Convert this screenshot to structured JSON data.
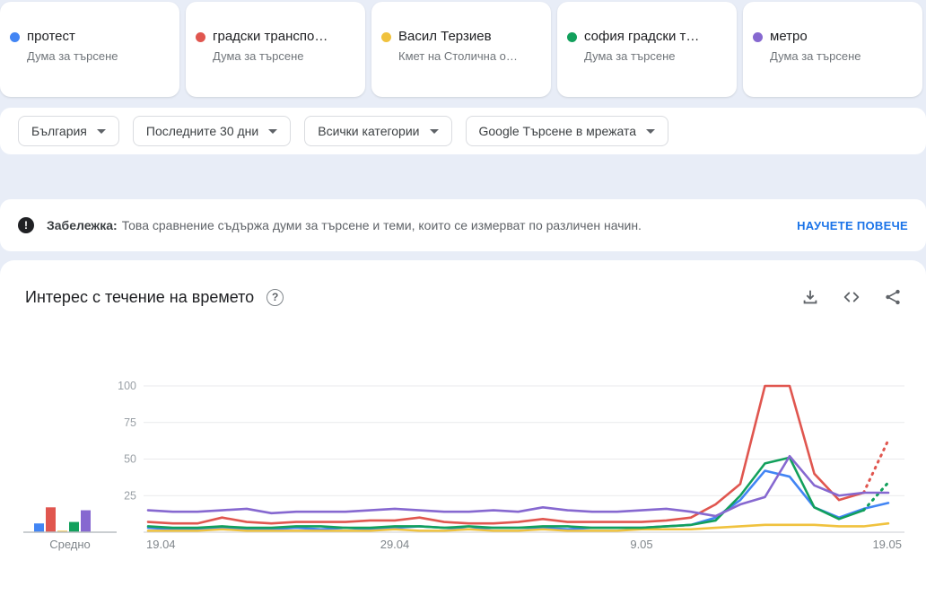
{
  "cards": [
    {
      "term": "протест",
      "subtitle": "Дума за търсене",
      "color": "#4285f4"
    },
    {
      "term": "градски транспо…",
      "subtitle": "Дума за търсене",
      "color": "#e0564f"
    },
    {
      "term": "Васил Терзиев",
      "subtitle": "Кмет на Столична о…",
      "color": "#f0c23e"
    },
    {
      "term": "софия градски т…",
      "subtitle": "Дума за търсене",
      "color": "#12a05c"
    },
    {
      "term": "метро",
      "subtitle": "Дума за търсене",
      "color": "#8668d0"
    }
  ],
  "filters": {
    "region": "България",
    "time": "Последните 30 дни",
    "category": "Всички категории",
    "search_type": "Google Търсене в мрежата"
  },
  "notice": {
    "label": "Забележка:",
    "text": "Това сравнение съдържа думи за търсене и теми, които се измерват по различен начин.",
    "link": "НАУЧЕТЕ ПОВЕЧЕ"
  },
  "section": {
    "title": "Интерес с течение на времето"
  },
  "chart_data": {
    "type": "line",
    "title": "Интерес с течение на времето",
    "xlabel": "",
    "ylabel": "",
    "ylim": [
      0,
      100
    ],
    "y_ticks": [
      25,
      50,
      75,
      100
    ],
    "x_ticks": [
      "19.04",
      "29.04",
      "9.05",
      "19.05"
    ],
    "x_tick_days": [
      0,
      10,
      20,
      30
    ],
    "grid": true,
    "average_label": "Средно",
    "series": [
      {
        "name": "протест",
        "color": "#4285f4",
        "average": 6,
        "values": [
          3,
          2,
          2,
          3,
          2,
          2,
          3,
          2,
          3,
          2,
          3,
          4,
          3,
          2,
          3,
          3,
          3,
          2,
          3,
          3,
          3,
          4,
          5,
          10,
          22,
          42,
          38,
          17,
          10,
          16,
          20
        ]
      },
      {
        "name": "градски транспо…",
        "color": "#e0564f",
        "average": 17,
        "dashed_from": 29,
        "values": [
          7,
          6,
          6,
          10,
          7,
          6,
          7,
          7,
          7,
          8,
          8,
          10,
          7,
          6,
          6,
          7,
          9,
          7,
          7,
          7,
          7,
          8,
          10,
          19,
          33,
          100,
          100,
          40,
          22,
          27,
          63
        ]
      },
      {
        "name": "Васил Терзиев",
        "color": "#f0c23e",
        "average": 1,
        "values": [
          1,
          1,
          1,
          2,
          1,
          1,
          1,
          1,
          1,
          1,
          2,
          1,
          1,
          2,
          1,
          1,
          2,
          1,
          1,
          1,
          2,
          2,
          2,
          3,
          4,
          5,
          5,
          5,
          4,
          4,
          6
        ]
      },
      {
        "name": "софия градски т…",
        "color": "#12a05c",
        "average": 7,
        "dashed_from": 29,
        "values": [
          4,
          3,
          3,
          4,
          3,
          3,
          4,
          4,
          3,
          3,
          4,
          4,
          3,
          4,
          3,
          3,
          4,
          4,
          3,
          3,
          3,
          4,
          5,
          8,
          25,
          47,
          51,
          17,
          9,
          15,
          34
        ]
      },
      {
        "name": "метро",
        "color": "#8668d0",
        "average": 15,
        "values": [
          15,
          14,
          14,
          15,
          16,
          13,
          14,
          14,
          14,
          15,
          16,
          15,
          14,
          14,
          15,
          14,
          17,
          15,
          14,
          14,
          15,
          16,
          14,
          11,
          19,
          24,
          52,
          32,
          25,
          27,
          27
        ]
      }
    ]
  }
}
